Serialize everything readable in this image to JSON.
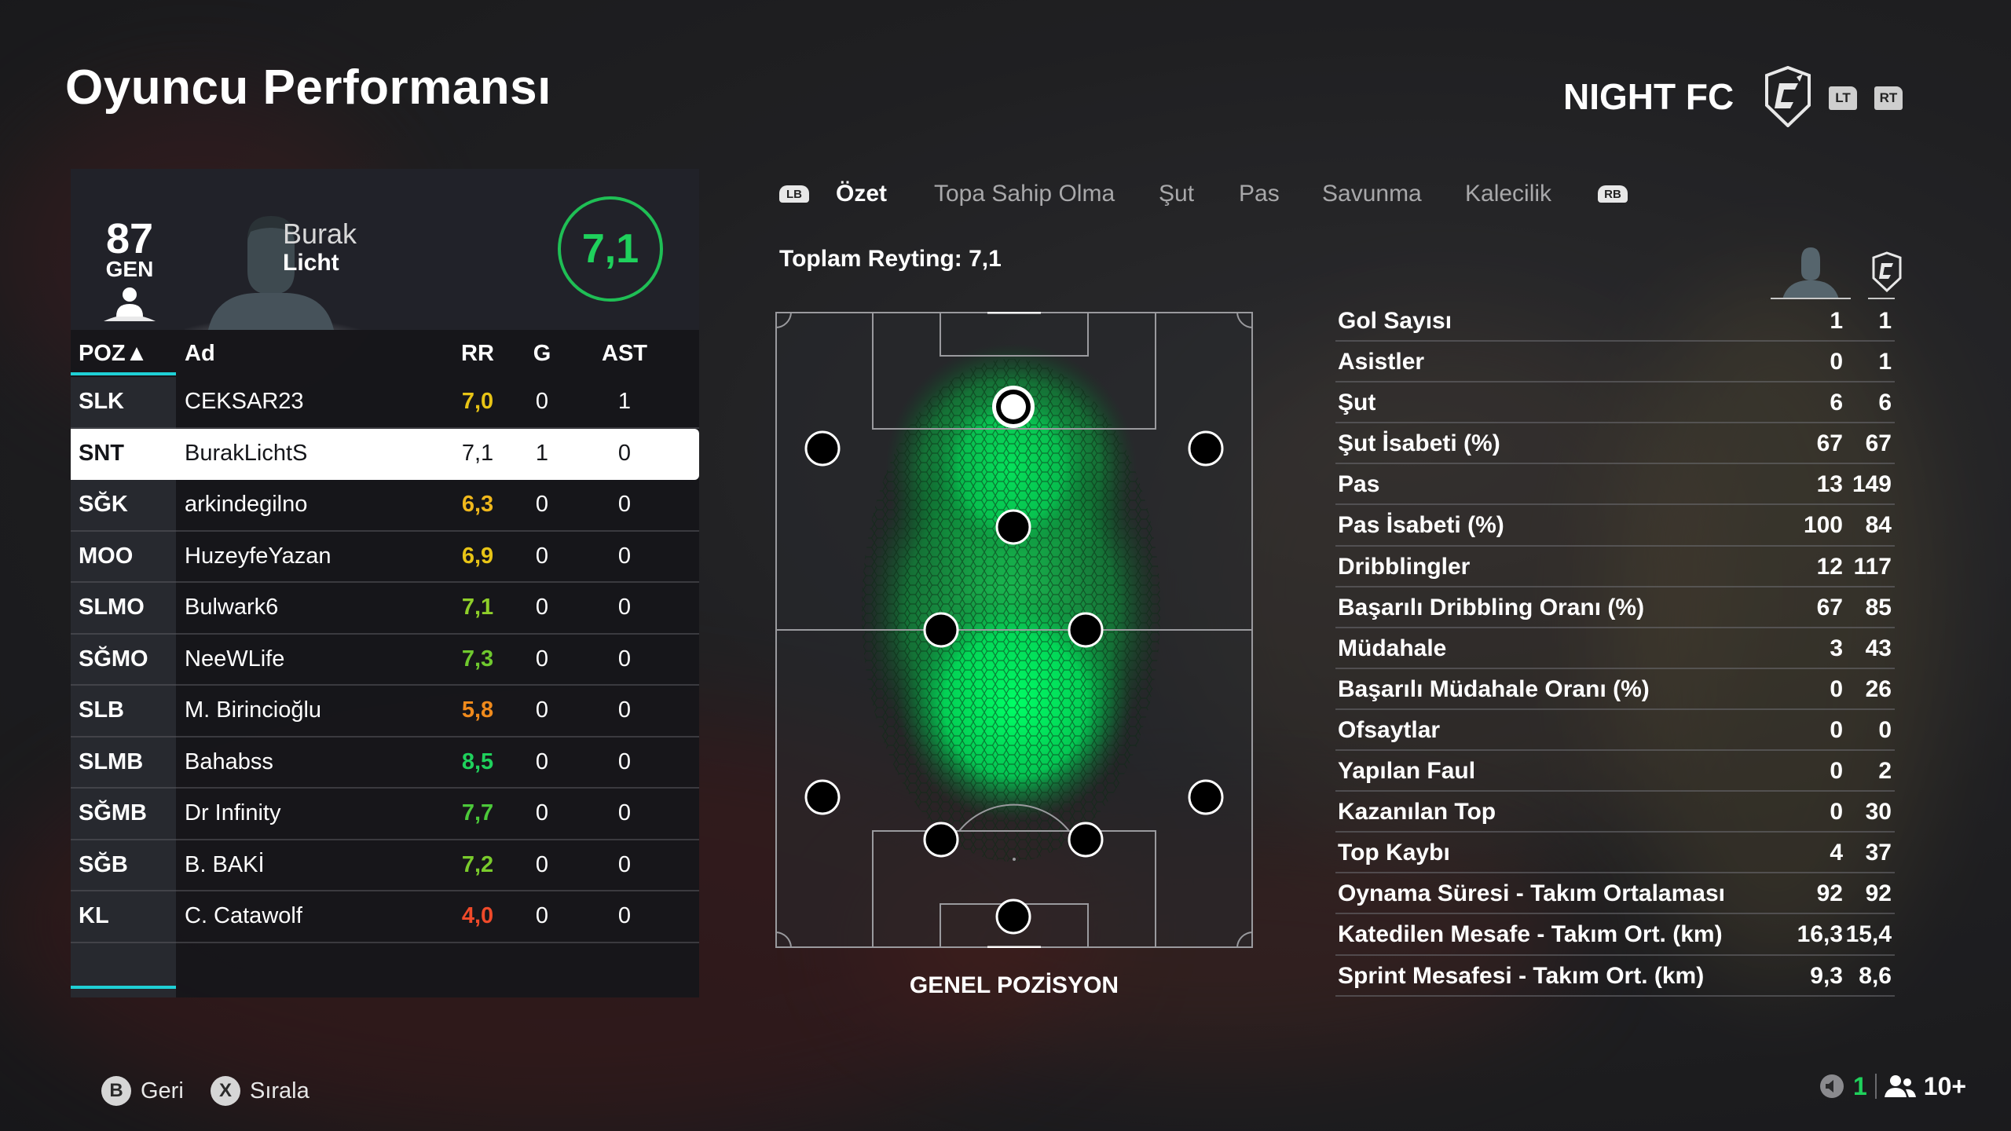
{
  "page": {
    "title": "Oyuncu Performansı"
  },
  "team": {
    "name": "NIGHT FC",
    "lt_label": "LT",
    "rt_label": "RT",
    "crest_icon": "night-fc-crest-icon"
  },
  "player_card": {
    "overall": "87",
    "overall_label": "GEN",
    "first_name": "Burak",
    "last_name": "Licht",
    "match_rating": "7,1"
  },
  "table": {
    "headers": {
      "pos": "POZ▲",
      "name": "Ad",
      "rr": "RR",
      "goals": "G",
      "assists": "AST"
    },
    "rows": [
      {
        "pos": "SLK",
        "name": "CEKSAR23",
        "rr": "7,0",
        "g": "0",
        "ast": "1",
        "rr_color": "#e8c416"
      },
      {
        "pos": "SNT",
        "name": "BurakLichtS",
        "rr": "7,1",
        "g": "1",
        "ast": "0",
        "rr_color": "#15161a"
      },
      {
        "pos": "SĞK",
        "name": "arkindegilno",
        "rr": "6,3",
        "g": "0",
        "ast": "0",
        "rr_color": "#f0b81c"
      },
      {
        "pos": "MOO",
        "name": "HuzeyfeYazan",
        "rr": "6,9",
        "g": "0",
        "ast": "0",
        "rr_color": "#e8c416"
      },
      {
        "pos": "SLMO",
        "name": "Bulwark6",
        "rr": "7,1",
        "g": "0",
        "ast": "0",
        "rr_color": "#8fcf2a"
      },
      {
        "pos": "SĞMO",
        "name": "NeeWLife",
        "rr": "7,3",
        "g": "0",
        "ast": "0",
        "rr_color": "#6fc92e"
      },
      {
        "pos": "SLB",
        "name": "M. Birincioğlu",
        "rr": "5,8",
        "g": "0",
        "ast": "0",
        "rr_color": "#f08a1c"
      },
      {
        "pos": "SLMB",
        "name": "Bahabss",
        "rr": "8,5",
        "g": "0",
        "ast": "0",
        "rr_color": "#1fd15c"
      },
      {
        "pos": "SĞMB",
        "name": "Dr Infinity",
        "rr": "7,7",
        "g": "0",
        "ast": "0",
        "rr_color": "#4cc93a"
      },
      {
        "pos": "SĞB",
        "name": "B. BAKİ",
        "rr": "7,2",
        "g": "0",
        "ast": "0",
        "rr_color": "#7acb2c"
      },
      {
        "pos": "KL",
        "name": "C. Catawolf",
        "rr": "4,0",
        "g": "0",
        "ast": "0",
        "rr_color": "#f04a2a"
      }
    ]
  },
  "tabs": {
    "lb_label": "LB",
    "rb_label": "RB",
    "items": [
      "Özet",
      "Topa Sahip Olma",
      "Şut",
      "Pas",
      "Savunma",
      "Kalecilik"
    ],
    "active": "Özet"
  },
  "summary": {
    "total_rating": "Toplam Reyting: 7,1",
    "pitch_label": "GENEL POZİSYON",
    "heatmap_color": "#00ff66"
  },
  "stats": [
    {
      "label": "Gol Sayısı",
      "player": "1",
      "team": "1"
    },
    {
      "label": "Asistler",
      "player": "0",
      "team": "1"
    },
    {
      "label": "Şut",
      "player": "6",
      "team": "6"
    },
    {
      "label": "Şut İsabeti (%)",
      "player": "67",
      "team": "67"
    },
    {
      "label": "Pas",
      "player": "13",
      "team": "149"
    },
    {
      "label": "Pas İsabeti (%)",
      "player": "100",
      "team": "84"
    },
    {
      "label": "Dribblingler",
      "player": "12",
      "team": "117"
    },
    {
      "label": "Başarılı Dribbling Oranı (%)",
      "player": "67",
      "team": "85"
    },
    {
      "label": "Müdahale",
      "player": "3",
      "team": "43"
    },
    {
      "label": "Başarılı Müdahale Oranı (%)",
      "player": "0",
      "team": "26"
    },
    {
      "label": "Ofsaytlar",
      "player": "0",
      "team": "0"
    },
    {
      "label": "Yapılan Faul",
      "player": "0",
      "team": "2"
    },
    {
      "label": "Kazanılan Top",
      "player": "0",
      "team": "30"
    },
    {
      "label": "Top Kaybı",
      "player": "4",
      "team": "37"
    },
    {
      "label": "Oynama Süresi - Takım Ortalaması",
      "player": "92",
      "team": "92"
    },
    {
      "label": "Katedilen Mesafe - Takım Ort. (km)",
      "player": "16,3",
      "team": "15,4"
    },
    {
      "label": "Sprint Mesafesi - Takım Ort. (km)",
      "player": "9,3",
      "team": "8,6"
    }
  ],
  "footer": {
    "back_button": "B",
    "back_label": "Geri",
    "sort_button": "X",
    "sort_label": "Sırala",
    "mic_count": "1",
    "party_count": "10+"
  }
}
